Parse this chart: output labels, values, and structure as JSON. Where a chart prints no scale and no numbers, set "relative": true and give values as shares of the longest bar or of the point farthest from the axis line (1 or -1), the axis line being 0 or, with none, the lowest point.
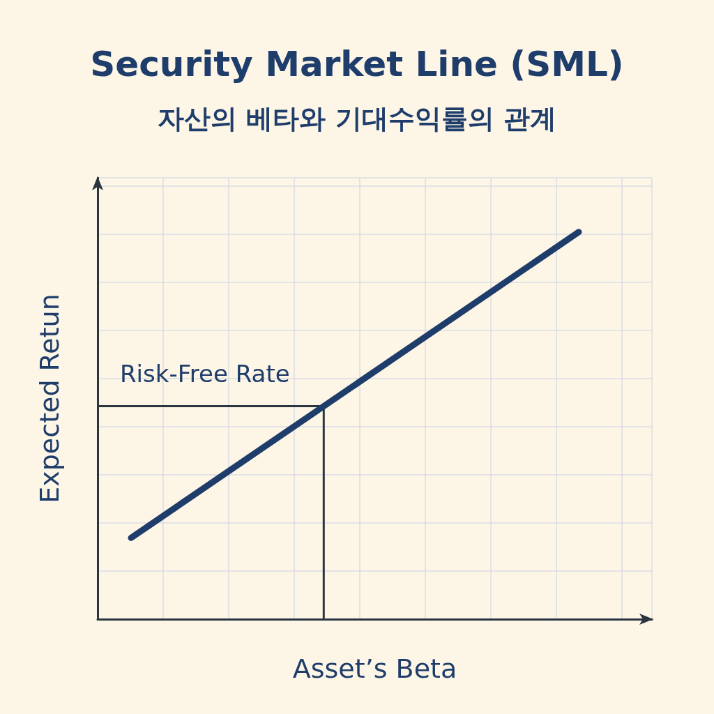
{
  "chart_data": {
    "type": "line",
    "title": "Security Market Line (SML)",
    "subtitle": "자산의 베타와 기대수익률의 관계",
    "xlabel": "Asset’s Beta",
    "ylabel": "Expected Retun",
    "relative": true,
    "categories": [
      null,
      null
    ],
    "grid": true,
    "series": [
      {
        "color": "#1f3d6b",
        "values": [
          0.21,
          1
        ]
      }
    ],
    "ref_lines": [
      {
        "axis": "y",
        "value": 0.55,
        "label": "Risk-Free Rate",
        "color": "#2b3540"
      }
    ]
  }
}
